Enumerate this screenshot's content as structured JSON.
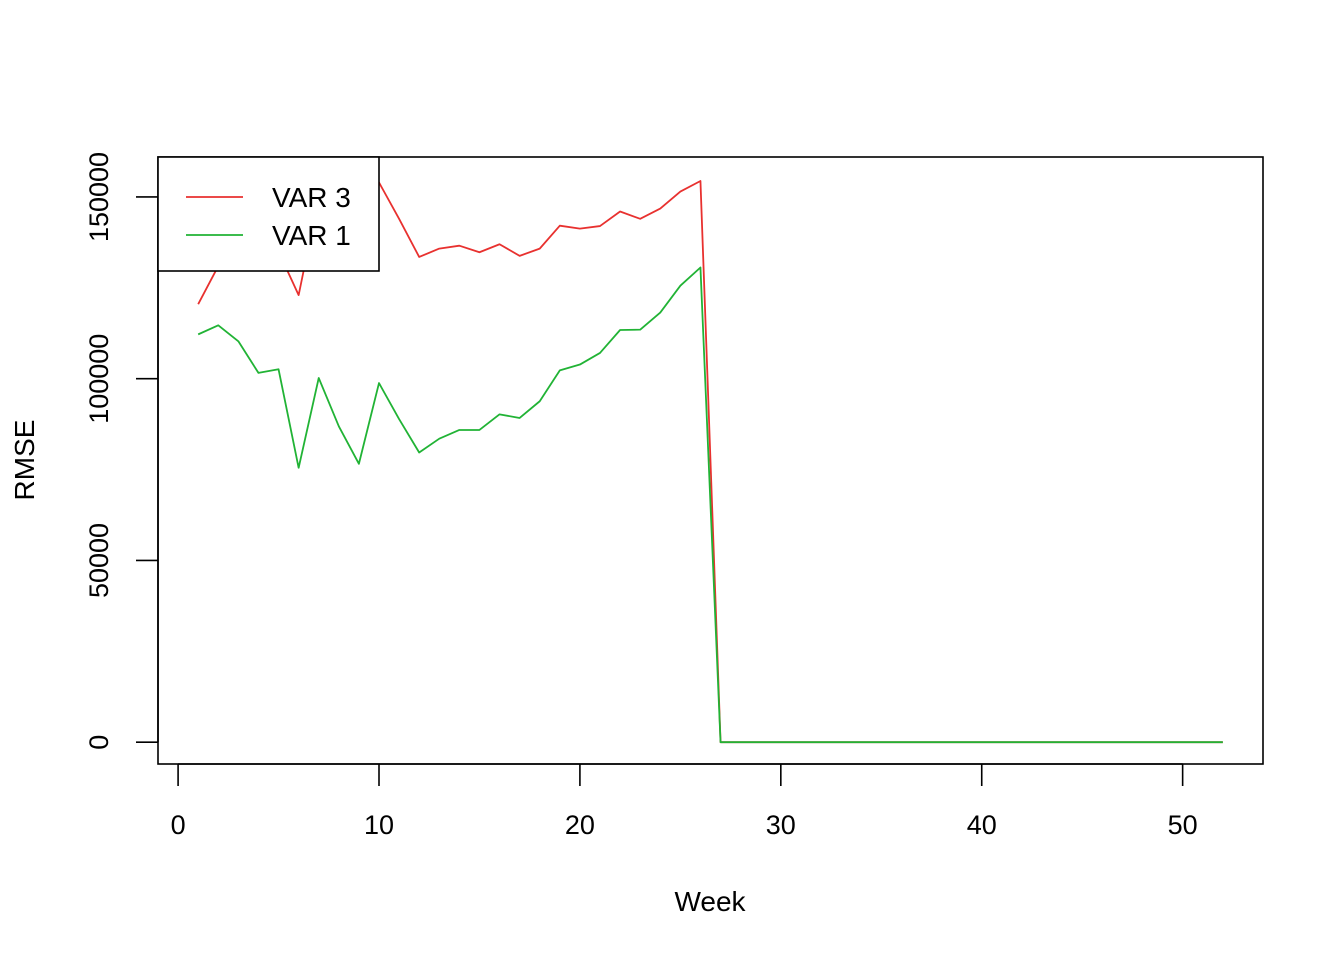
{
  "chart_data": {
    "type": "line",
    "title": "",
    "xlabel": "Week",
    "ylabel": "RMSE",
    "xlim": [
      -1,
      54
    ],
    "ylim": [
      -6000,
      161000
    ],
    "x_ticks": [
      0,
      10,
      20,
      30,
      40,
      50
    ],
    "x_tick_labels": [
      "0",
      "10",
      "20",
      "30",
      "40",
      "50"
    ],
    "y_ticks": [
      0,
      50000,
      100000,
      150000
    ],
    "y_tick_labels": [
      "0",
      "50000",
      "100000",
      "150000"
    ],
    "grid": false,
    "legend": {
      "position": "top-left",
      "entries": [
        "VAR 3",
        "VAR 1"
      ]
    },
    "x": [
      1,
      2,
      3,
      4,
      5,
      6,
      7,
      8,
      9,
      10,
      11,
      12,
      13,
      14,
      15,
      16,
      17,
      18,
      19,
      20,
      21,
      22,
      23,
      24,
      25,
      26,
      27,
      28,
      29,
      30,
      31,
      32,
      33,
      34,
      35,
      36,
      37,
      38,
      39,
      40,
      41,
      42,
      43,
      44,
      45,
      46,
      47,
      48,
      49,
      50,
      51,
      52
    ],
    "series": [
      {
        "name": "VAR 3",
        "color": "#e8312f",
        "values": [
          120500,
          131000,
          134000,
          136000,
          135000,
          123000,
          150000,
          151000,
          152000,
          154000,
          144000,
          133500,
          135800,
          136600,
          134800,
          137000,
          133800,
          135800,
          142100,
          141300,
          142000,
          146000,
          144000,
          146800,
          151500,
          154400,
          0,
          0,
          0,
          0,
          0,
          0,
          0,
          0,
          0,
          0,
          0,
          0,
          0,
          0,
          0,
          0,
          0,
          0,
          0,
          0,
          0,
          0,
          0,
          0,
          0,
          0
        ]
      },
      {
        "name": "VAR 1",
        "color": "#21b335",
        "values": [
          112200,
          114700,
          110300,
          101600,
          102600,
          75500,
          100200,
          86900,
          76600,
          98800,
          88900,
          79700,
          83500,
          85900,
          85900,
          90200,
          89200,
          93800,
          102300,
          103900,
          107100,
          113400,
          113500,
          118200,
          125600,
          130600,
          0,
          0,
          0,
          0,
          0,
          0,
          0,
          0,
          0,
          0,
          0,
          0,
          0,
          0,
          0,
          0,
          0,
          0,
          0,
          0,
          0,
          0,
          0,
          0,
          0,
          0
        ]
      }
    ]
  }
}
